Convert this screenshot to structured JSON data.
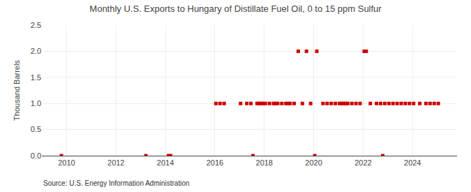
{
  "chart_data": {
    "type": "scatter",
    "title": "Monthly U.S. Exports to Hungary of Distillate Fuel Oil, 0 to 15 ppm Sulfur",
    "ylabel": "Thousand Barrels",
    "annotations": [
      "Source: U.S. Energy Information Administration"
    ],
    "x": [
      2009.7916666667,
      2013.2083333333,
      2014.125,
      2014.2083333333,
      2016.0416666667,
      2016.2083333333,
      2016.375,
      2017.0416666667,
      2017.2916666667,
      2017.4583333333,
      2017.5416666667,
      2017.7083333333,
      2017.7916666667,
      2017.875,
      2017.9583333333,
      2018.0416666667,
      2018.2083333333,
      2018.375,
      2018.4583333333,
      2018.5416666667,
      2018.7083333333,
      2018.875,
      2018.9583333333,
      2019.0416666667,
      2019.2083333333,
      2019.375,
      2019.5416666667,
      2019.7083333333,
      2019.875,
      2020.0416666667,
      2020.125,
      2020.375,
      2020.5416666667,
      2020.7083333333,
      2020.875,
      2021.0416666667,
      2021.125,
      2021.2083333333,
      2021.2916666667,
      2021.375,
      2021.5416666667,
      2021.7083333333,
      2021.875,
      2022.0416666667,
      2022.125,
      2022.2916666667,
      2022.5416666667,
      2022.7083333333,
      2022.7916666667,
      2022.875,
      2023.0416666667,
      2023.2083333333,
      2023.375,
      2023.5416666667,
      2023.7083333333,
      2023.875,
      2024.0416666667,
      2024.2916666667,
      2024.5416666667,
      2024.7083333333,
      2024.875,
      2025.0416666667
    ],
    "values": [
      0,
      0,
      0,
      0,
      1,
      1,
      1,
      1,
      1,
      1,
      0,
      1,
      1,
      1,
      1,
      1,
      1,
      1,
      1,
      1,
      1,
      1,
      1,
      1,
      1,
      2,
      1,
      2,
      1,
      0,
      2,
      1,
      1,
      1,
      1,
      1,
      1,
      1,
      1,
      1,
      1,
      1,
      1,
      2,
      2,
      1,
      1,
      1,
      0,
      1,
      1,
      1,
      1,
      1,
      1,
      1,
      1,
      1,
      1,
      1,
      1,
      1
    ],
    "color": "#cc0000",
    "marker": "square",
    "xlim": [
      2009.0,
      2025.8
    ],
    "xticks": [
      2010,
      2012,
      2014,
      2016,
      2018,
      2020,
      2022,
      2024
    ],
    "ylim": [
      0.0,
      2.5
    ],
    "yticks": [
      {
        "value": 0,
        "label": "0.0"
      },
      0.5,
      {
        "value": 1,
        "label": "1.0"
      },
      1.5,
      {
        "value": 2,
        "label": "2.0"
      },
      2.5
    ],
    "grid": true
  }
}
